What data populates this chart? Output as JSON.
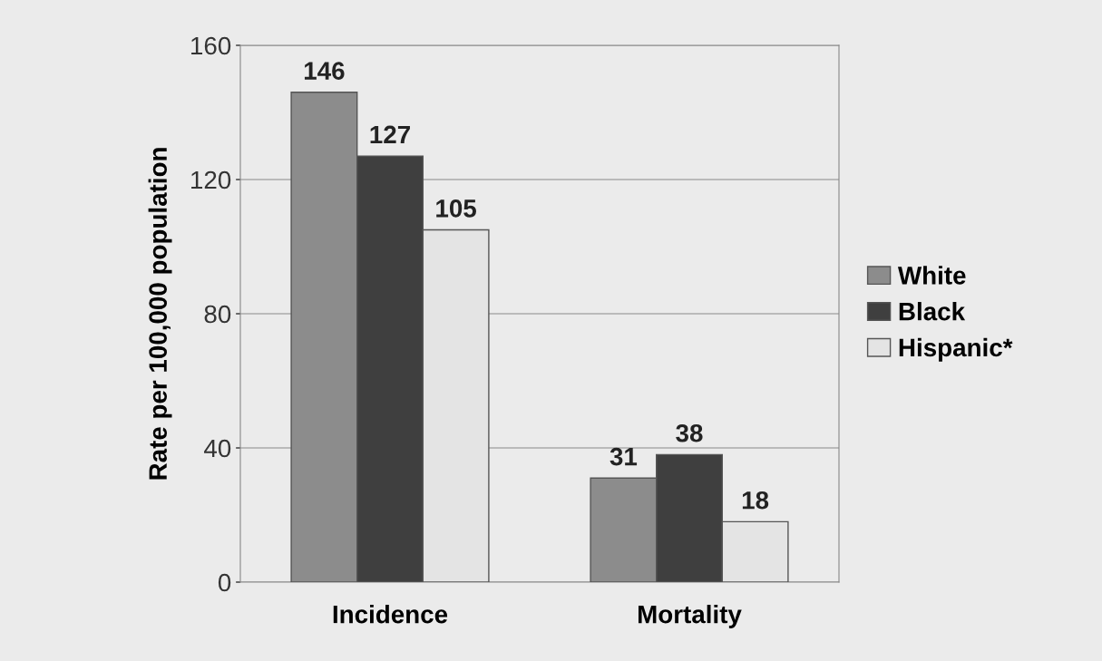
{
  "chart_data": {
    "type": "bar",
    "ylabel": "Rate per 100,000 population",
    "categories": [
      "Incidence",
      "Mortality"
    ],
    "series": [
      {
        "name": "White",
        "color": "#8c8c8c",
        "values": [
          146,
          31
        ]
      },
      {
        "name": "Black",
        "color": "#3f3f3f",
        "values": [
          127,
          38
        ]
      },
      {
        "name": "Hispanic*",
        "color": "#e4e4e4",
        "values": [
          105,
          18
        ]
      }
    ],
    "ylim": [
      0,
      160
    ],
    "yticks": [
      0,
      40,
      80,
      120,
      160
    ],
    "grid": "y",
    "legend": "right",
    "data_labels": true
  }
}
